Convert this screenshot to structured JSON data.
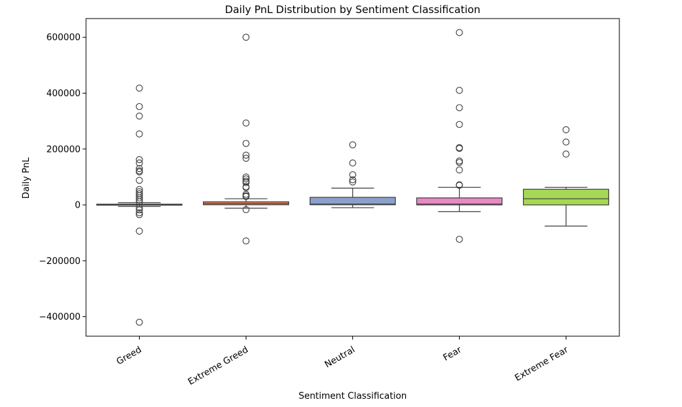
{
  "chart_data": {
    "type": "box",
    "title": "Daily PnL Distribution by Sentiment Classification",
    "xlabel": "Sentiment Classification",
    "ylabel": "Daily PnL",
    "ylim": [
      -470000,
      667000
    ],
    "yticks": [
      -400000,
      -200000,
      0,
      200000,
      400000,
      600000
    ],
    "yticklabels": [
      "−400000",
      "−200000",
      "0",
      "200000",
      "400000",
      "600000"
    ],
    "grid": false,
    "boxes": [
      {
        "category": "Greed",
        "color": "#66c2a5",
        "q1": -1000,
        "median": 500,
        "q3": 2500,
        "whisker_low": -6000,
        "whisker_high": 8000,
        "outliers": [
          418000,
          352000,
          318000,
          254000,
          162000,
          150000,
          130000,
          122000,
          118000,
          88000,
          55000,
          47000,
          40000,
          33000,
          25000,
          18000,
          11000,
          -10000,
          -18000,
          -28000,
          -35000,
          -94000,
          -420000
        ]
      },
      {
        "category": "Extreme Greed",
        "color": "#fc8d62",
        "q1": 500,
        "median": 5000,
        "q3": 11000,
        "whisker_low": -12000,
        "whisker_high": 22000,
        "outliers": [
          600000,
          293000,
          220000,
          178000,
          167000,
          100000,
          93000,
          85000,
          80000,
          65000,
          62000,
          38000,
          33000,
          30000,
          -17000,
          -129000
        ]
      },
      {
        "category": "Neutral",
        "color": "#8da0cb",
        "q1": 500,
        "median": 3000,
        "q3": 27000,
        "whisker_low": -10000,
        "whisker_high": 60000,
        "outliers": [
          215000,
          150000,
          108000,
          90000,
          82000
        ]
      },
      {
        "category": "Fear",
        "color": "#e78ac3",
        "q1": 0,
        "median": 3000,
        "q3": 25000,
        "whisker_low": -24000,
        "whisker_high": 63000,
        "outliers": [
          617000,
          410000,
          348000,
          288000,
          205000,
          202000,
          157000,
          152000,
          125000,
          72000,
          70000,
          -123000
        ]
      },
      {
        "category": "Extreme Fear",
        "color": "#a6d854",
        "q1": 0,
        "median": 22000,
        "q3": 56000,
        "whisker_low": -76000,
        "whisker_high": 63000,
        "outliers": [
          269000,
          225000,
          182000
        ]
      }
    ]
  }
}
